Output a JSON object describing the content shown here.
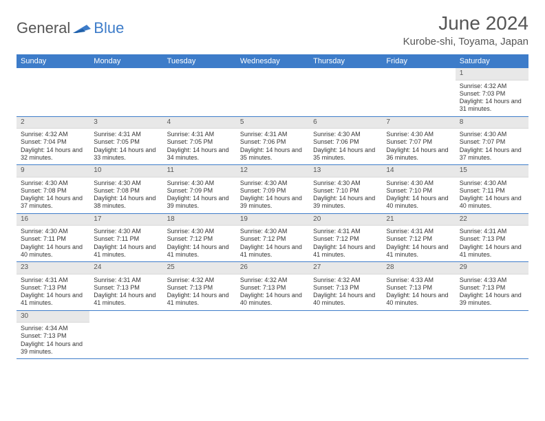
{
  "logo": {
    "textA": "General",
    "textB": "Blue"
  },
  "title": "June 2024",
  "location": "Kurobe-shi, Toyama, Japan",
  "colors": {
    "headerBar": "#3d7cc9",
    "dayNumBg": "#e8e8e8",
    "rowBorder": "#3d7cc9"
  },
  "dayNames": [
    "Sunday",
    "Monday",
    "Tuesday",
    "Wednesday",
    "Thursday",
    "Friday",
    "Saturday"
  ],
  "weeks": [
    [
      null,
      null,
      null,
      null,
      null,
      null,
      {
        "n": "1",
        "sunrise": "4:32 AM",
        "sunset": "7:03 PM",
        "daylight": "14 hours and 31 minutes."
      }
    ],
    [
      {
        "n": "2",
        "sunrise": "4:32 AM",
        "sunset": "7:04 PM",
        "daylight": "14 hours and 32 minutes."
      },
      {
        "n": "3",
        "sunrise": "4:31 AM",
        "sunset": "7:05 PM",
        "daylight": "14 hours and 33 minutes."
      },
      {
        "n": "4",
        "sunrise": "4:31 AM",
        "sunset": "7:05 PM",
        "daylight": "14 hours and 34 minutes."
      },
      {
        "n": "5",
        "sunrise": "4:31 AM",
        "sunset": "7:06 PM",
        "daylight": "14 hours and 35 minutes."
      },
      {
        "n": "6",
        "sunrise": "4:30 AM",
        "sunset": "7:06 PM",
        "daylight": "14 hours and 35 minutes."
      },
      {
        "n": "7",
        "sunrise": "4:30 AM",
        "sunset": "7:07 PM",
        "daylight": "14 hours and 36 minutes."
      },
      {
        "n": "8",
        "sunrise": "4:30 AM",
        "sunset": "7:07 PM",
        "daylight": "14 hours and 37 minutes."
      }
    ],
    [
      {
        "n": "9",
        "sunrise": "4:30 AM",
        "sunset": "7:08 PM",
        "daylight": "14 hours and 37 minutes."
      },
      {
        "n": "10",
        "sunrise": "4:30 AM",
        "sunset": "7:08 PM",
        "daylight": "14 hours and 38 minutes."
      },
      {
        "n": "11",
        "sunrise": "4:30 AM",
        "sunset": "7:09 PM",
        "daylight": "14 hours and 39 minutes."
      },
      {
        "n": "12",
        "sunrise": "4:30 AM",
        "sunset": "7:09 PM",
        "daylight": "14 hours and 39 minutes."
      },
      {
        "n": "13",
        "sunrise": "4:30 AM",
        "sunset": "7:10 PM",
        "daylight": "14 hours and 39 minutes."
      },
      {
        "n": "14",
        "sunrise": "4:30 AM",
        "sunset": "7:10 PM",
        "daylight": "14 hours and 40 minutes."
      },
      {
        "n": "15",
        "sunrise": "4:30 AM",
        "sunset": "7:11 PM",
        "daylight": "14 hours and 40 minutes."
      }
    ],
    [
      {
        "n": "16",
        "sunrise": "4:30 AM",
        "sunset": "7:11 PM",
        "daylight": "14 hours and 40 minutes."
      },
      {
        "n": "17",
        "sunrise": "4:30 AM",
        "sunset": "7:11 PM",
        "daylight": "14 hours and 41 minutes."
      },
      {
        "n": "18",
        "sunrise": "4:30 AM",
        "sunset": "7:12 PM",
        "daylight": "14 hours and 41 minutes."
      },
      {
        "n": "19",
        "sunrise": "4:30 AM",
        "sunset": "7:12 PM",
        "daylight": "14 hours and 41 minutes."
      },
      {
        "n": "20",
        "sunrise": "4:31 AM",
        "sunset": "7:12 PM",
        "daylight": "14 hours and 41 minutes."
      },
      {
        "n": "21",
        "sunrise": "4:31 AM",
        "sunset": "7:12 PM",
        "daylight": "14 hours and 41 minutes."
      },
      {
        "n": "22",
        "sunrise": "4:31 AM",
        "sunset": "7:13 PM",
        "daylight": "14 hours and 41 minutes."
      }
    ],
    [
      {
        "n": "23",
        "sunrise": "4:31 AM",
        "sunset": "7:13 PM",
        "daylight": "14 hours and 41 minutes."
      },
      {
        "n": "24",
        "sunrise": "4:31 AM",
        "sunset": "7:13 PM",
        "daylight": "14 hours and 41 minutes."
      },
      {
        "n": "25",
        "sunrise": "4:32 AM",
        "sunset": "7:13 PM",
        "daylight": "14 hours and 41 minutes."
      },
      {
        "n": "26",
        "sunrise": "4:32 AM",
        "sunset": "7:13 PM",
        "daylight": "14 hours and 40 minutes."
      },
      {
        "n": "27",
        "sunrise": "4:32 AM",
        "sunset": "7:13 PM",
        "daylight": "14 hours and 40 minutes."
      },
      {
        "n": "28",
        "sunrise": "4:33 AM",
        "sunset": "7:13 PM",
        "daylight": "14 hours and 40 minutes."
      },
      {
        "n": "29",
        "sunrise": "4:33 AM",
        "sunset": "7:13 PM",
        "daylight": "14 hours and 39 minutes."
      }
    ],
    [
      {
        "n": "30",
        "sunrise": "4:34 AM",
        "sunset": "7:13 PM",
        "daylight": "14 hours and 39 minutes."
      },
      null,
      null,
      null,
      null,
      null,
      null
    ]
  ],
  "labels": {
    "sunrise": "Sunrise:",
    "sunset": "Sunset:",
    "daylight": "Daylight:"
  }
}
